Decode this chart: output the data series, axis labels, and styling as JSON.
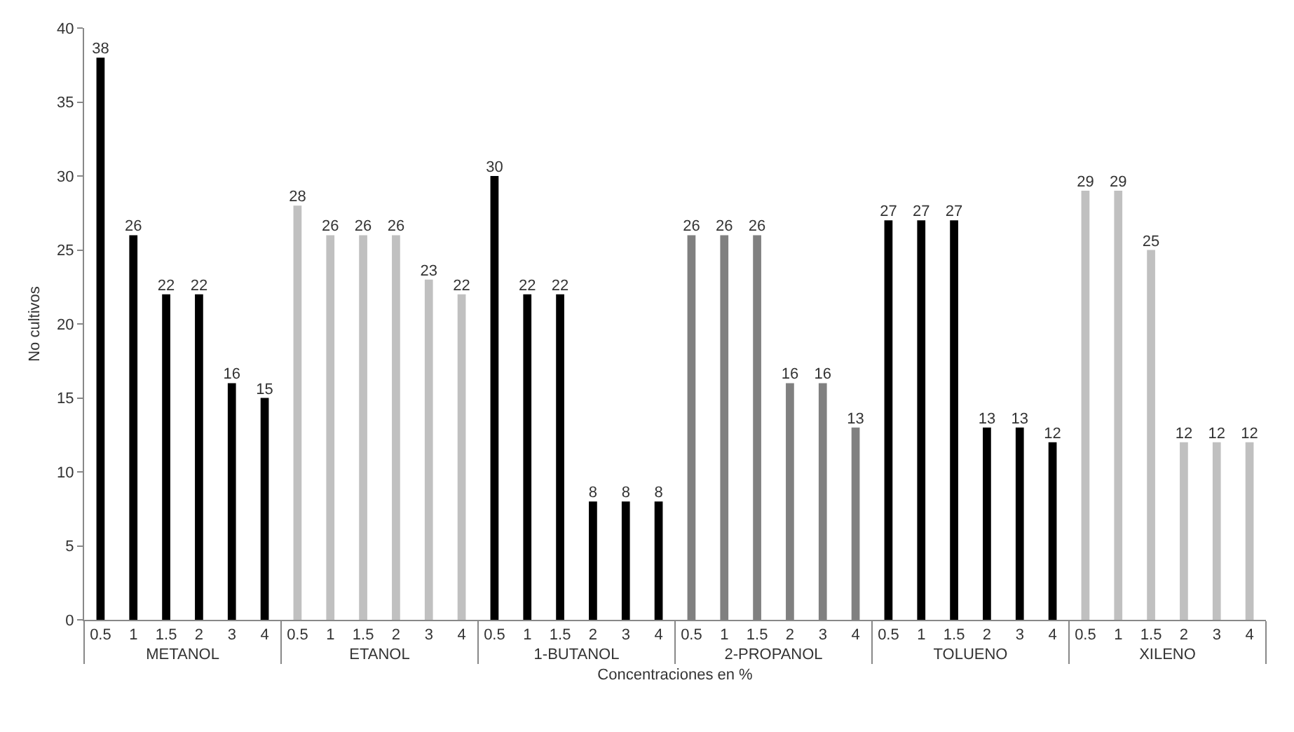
{
  "chart_data": {
    "type": "bar",
    "xlabel": "Concentraciones en %",
    "ylabel": "No cultivos",
    "categories": [
      "0.5",
      "1",
      "1.5",
      "2",
      "3",
      "4",
      "0.5",
      "1",
      "1.5",
      "2",
      "3",
      "4",
      "0.5",
      "1",
      "1.5",
      "2",
      "3",
      "4",
      "0.5",
      "1",
      "1.5",
      "2",
      "3",
      "4",
      "0.5",
      "1",
      "1.5",
      "2",
      "3",
      "4",
      "0.5",
      "1",
      "1.5",
      "2",
      "3",
      "4"
    ],
    "series": [
      {
        "name": "METANOL",
        "color": "#000000",
        "values": [
          38,
          26,
          22,
          22,
          16,
          15,
          null,
          null,
          null,
          null,
          null,
          null,
          null,
          null,
          null,
          null,
          null,
          null,
          null,
          null,
          null,
          null,
          null,
          null,
          null,
          null,
          null,
          null,
          null,
          null,
          null,
          null,
          null,
          null,
          null,
          null
        ]
      },
      {
        "name": "ETANOL",
        "color": "#c0c0c0",
        "values": [
          null,
          null,
          null,
          null,
          null,
          null,
          28,
          26,
          26,
          26,
          23,
          22,
          null,
          null,
          null,
          null,
          null,
          null,
          null,
          null,
          null,
          null,
          null,
          null,
          null,
          null,
          null,
          null,
          null,
          null,
          null,
          null,
          null,
          null,
          null,
          null
        ]
      },
      {
        "name": "1-BUTANOL",
        "color": "#000000",
        "values": [
          null,
          null,
          null,
          null,
          null,
          null,
          null,
          null,
          null,
          null,
          null,
          null,
          30,
          22,
          22,
          8,
          8,
          8,
          null,
          null,
          null,
          null,
          null,
          null,
          null,
          null,
          null,
          null,
          null,
          null,
          null,
          null,
          null,
          null,
          null,
          null
        ]
      },
      {
        "name": "2-PROPANOL",
        "color": "#808080",
        "values": [
          null,
          null,
          null,
          null,
          null,
          null,
          null,
          null,
          null,
          null,
          null,
          null,
          null,
          null,
          null,
          null,
          null,
          null,
          26,
          26,
          26,
          16,
          16,
          13,
          null,
          null,
          null,
          null,
          null,
          null,
          null,
          null,
          null,
          null,
          null,
          null
        ]
      },
      {
        "name": "TOLUENO",
        "color": "#000000",
        "values": [
          null,
          null,
          null,
          null,
          null,
          null,
          null,
          null,
          null,
          null,
          null,
          null,
          null,
          null,
          null,
          null,
          null,
          null,
          null,
          null,
          null,
          null,
          null,
          null,
          27,
          27,
          27,
          13,
          13,
          12,
          null,
          null,
          null,
          null,
          null,
          null
        ]
      },
      {
        "name": "XILENO",
        "color": "#c0c0c0",
        "values": [
          null,
          null,
          null,
          null,
          null,
          null,
          null,
          null,
          null,
          null,
          null,
          null,
          null,
          null,
          null,
          null,
          null,
          null,
          null,
          null,
          null,
          null,
          null,
          null,
          null,
          null,
          null,
          null,
          null,
          null,
          29,
          29,
          25,
          12,
          12,
          12
        ]
      }
    ],
    "ylim": [
      0,
      40
    ],
    "yticks": [
      0,
      5,
      10,
      15,
      20,
      25,
      30,
      35,
      40
    ],
    "data_labels": true,
    "grid": false,
    "legend": false
  }
}
